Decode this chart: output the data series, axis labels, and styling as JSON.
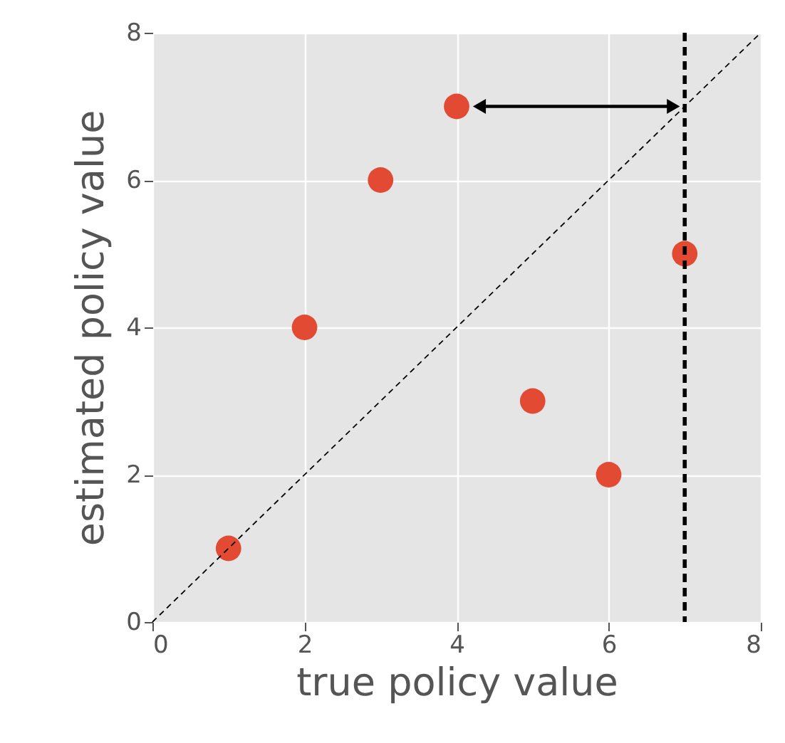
{
  "chart_data": {
    "type": "scatter",
    "xlabel": "true policy value",
    "ylabel": "estimated policy value",
    "series": [
      {
        "color": "#e24a33",
        "x": [
          1,
          2,
          3,
          4,
          5,
          6,
          7
        ],
        "values": [
          1,
          4,
          6,
          7,
          3,
          2,
          5
        ]
      },
      {
        "type": "line",
        "color": "#000000",
        "x": [
          0,
          8
        ],
        "values": [
          0,
          8
        ],
        "line_style": "dashed"
      }
    ],
    "ref_lines": [
      {
        "axis": "x",
        "value": 7,
        "color": "#000000",
        "line_style": "dashed"
      }
    ],
    "xlim": [
      0,
      8
    ],
    "ylim": [
      0,
      8
    ],
    "xticks": [
      0,
      2,
      4,
      6,
      8
    ],
    "yticks": [
      0,
      2,
      4,
      6,
      8
    ],
    "grid": true
  }
}
